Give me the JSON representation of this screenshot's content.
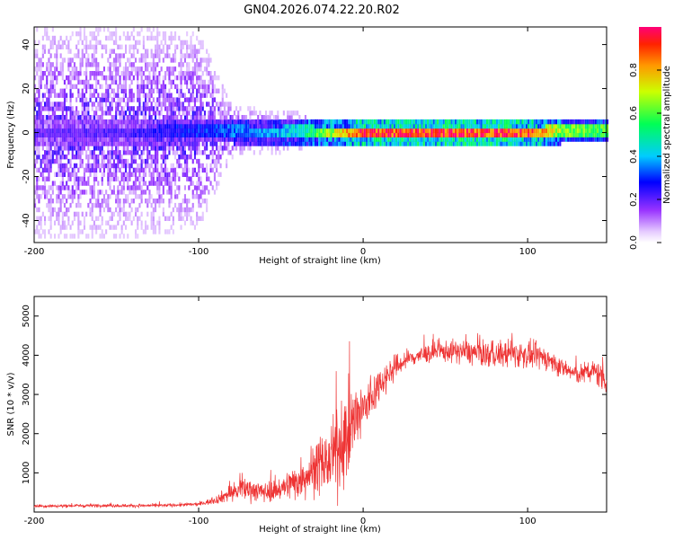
{
  "figure_title": "GN04.2026.074.22.20.R02",
  "chart_data": [
    {
      "type": "heatmap",
      "title": "GN04.2026.074.22.20.R02",
      "xlabel": "Height of straight line (km)",
      "ylabel": "Frequency (Hz)",
      "xlim": [
        -200,
        148
      ],
      "ylim": [
        -50,
        48
      ],
      "xticks": [
        -200,
        -100,
        0,
        100
      ],
      "yticks": [
        -40,
        -20,
        0,
        20,
        40
      ],
      "colorbar": {
        "label": "Normalized spectral amplitude",
        "range": [
          0,
          1
        ],
        "ticks": [
          0.0,
          0.2,
          0.4,
          0.6,
          0.8
        ]
      },
      "ridge": {
        "x": [
          -200,
          -150,
          -100,
          -80,
          -60,
          -40,
          -20,
          -10,
          0,
          50,
          100,
          120,
          148
        ],
        "center_hz": [
          0,
          0,
          1,
          1,
          0,
          1,
          0,
          0,
          0,
          0,
          0,
          1,
          1
        ],
        "peak_amplitude": [
          0.2,
          0.22,
          0.3,
          0.35,
          0.38,
          0.45,
          0.7,
          0.85,
          0.95,
          0.97,
          0.95,
          0.65,
          0.6
        ],
        "noise_spread_hz": [
          48,
          48,
          45,
          12,
          10,
          9,
          4,
          3,
          2,
          2,
          2,
          2,
          2
        ]
      }
    },
    {
      "type": "line",
      "xlabel": "Height of straight line (km)",
      "ylabel": "SNR (10 * v/v)",
      "xlim": [
        -200,
        148
      ],
      "ylim": [
        0,
        5500
      ],
      "xticks": [
        -200,
        -100,
        0,
        100
      ],
      "yticks": [
        1000,
        2000,
        3000,
        4000,
        5000
      ],
      "color": "#ee3333",
      "series": [
        {
          "name": "SNR",
          "x": [
            -200,
            -180,
            -160,
            -140,
            -120,
            -100,
            -90,
            -80,
            -70,
            -60,
            -50,
            -40,
            -30,
            -20,
            -15,
            -10,
            -5,
            0,
            5,
            10,
            15,
            20,
            25,
            30,
            40,
            50,
            60,
            70,
            80,
            90,
            100,
            110,
            120,
            130,
            140,
            148
          ],
          "mean": [
            150,
            160,
            170,
            160,
            170,
            200,
            300,
            500,
            600,
            500,
            600,
            800,
            1100,
            1300,
            1600,
            2000,
            2300,
            2600,
            2900,
            3300,
            3500,
            3700,
            3850,
            3950,
            4050,
            4100,
            4100,
            4050,
            4000,
            4050,
            4000,
            3950,
            3700,
            3500,
            3600,
            3400
          ],
          "noise": [
            70,
            70,
            70,
            70,
            70,
            80,
            150,
            400,
            500,
            400,
            500,
            800,
            1100,
            1300,
            1800,
            1900,
            1700,
            1300,
            1000,
            700,
            600,
            500,
            450,
            400,
            400,
            450,
            500,
            550,
            550,
            600,
            550,
            500,
            400,
            400,
            500,
            700
          ]
        }
      ]
    }
  ]
}
